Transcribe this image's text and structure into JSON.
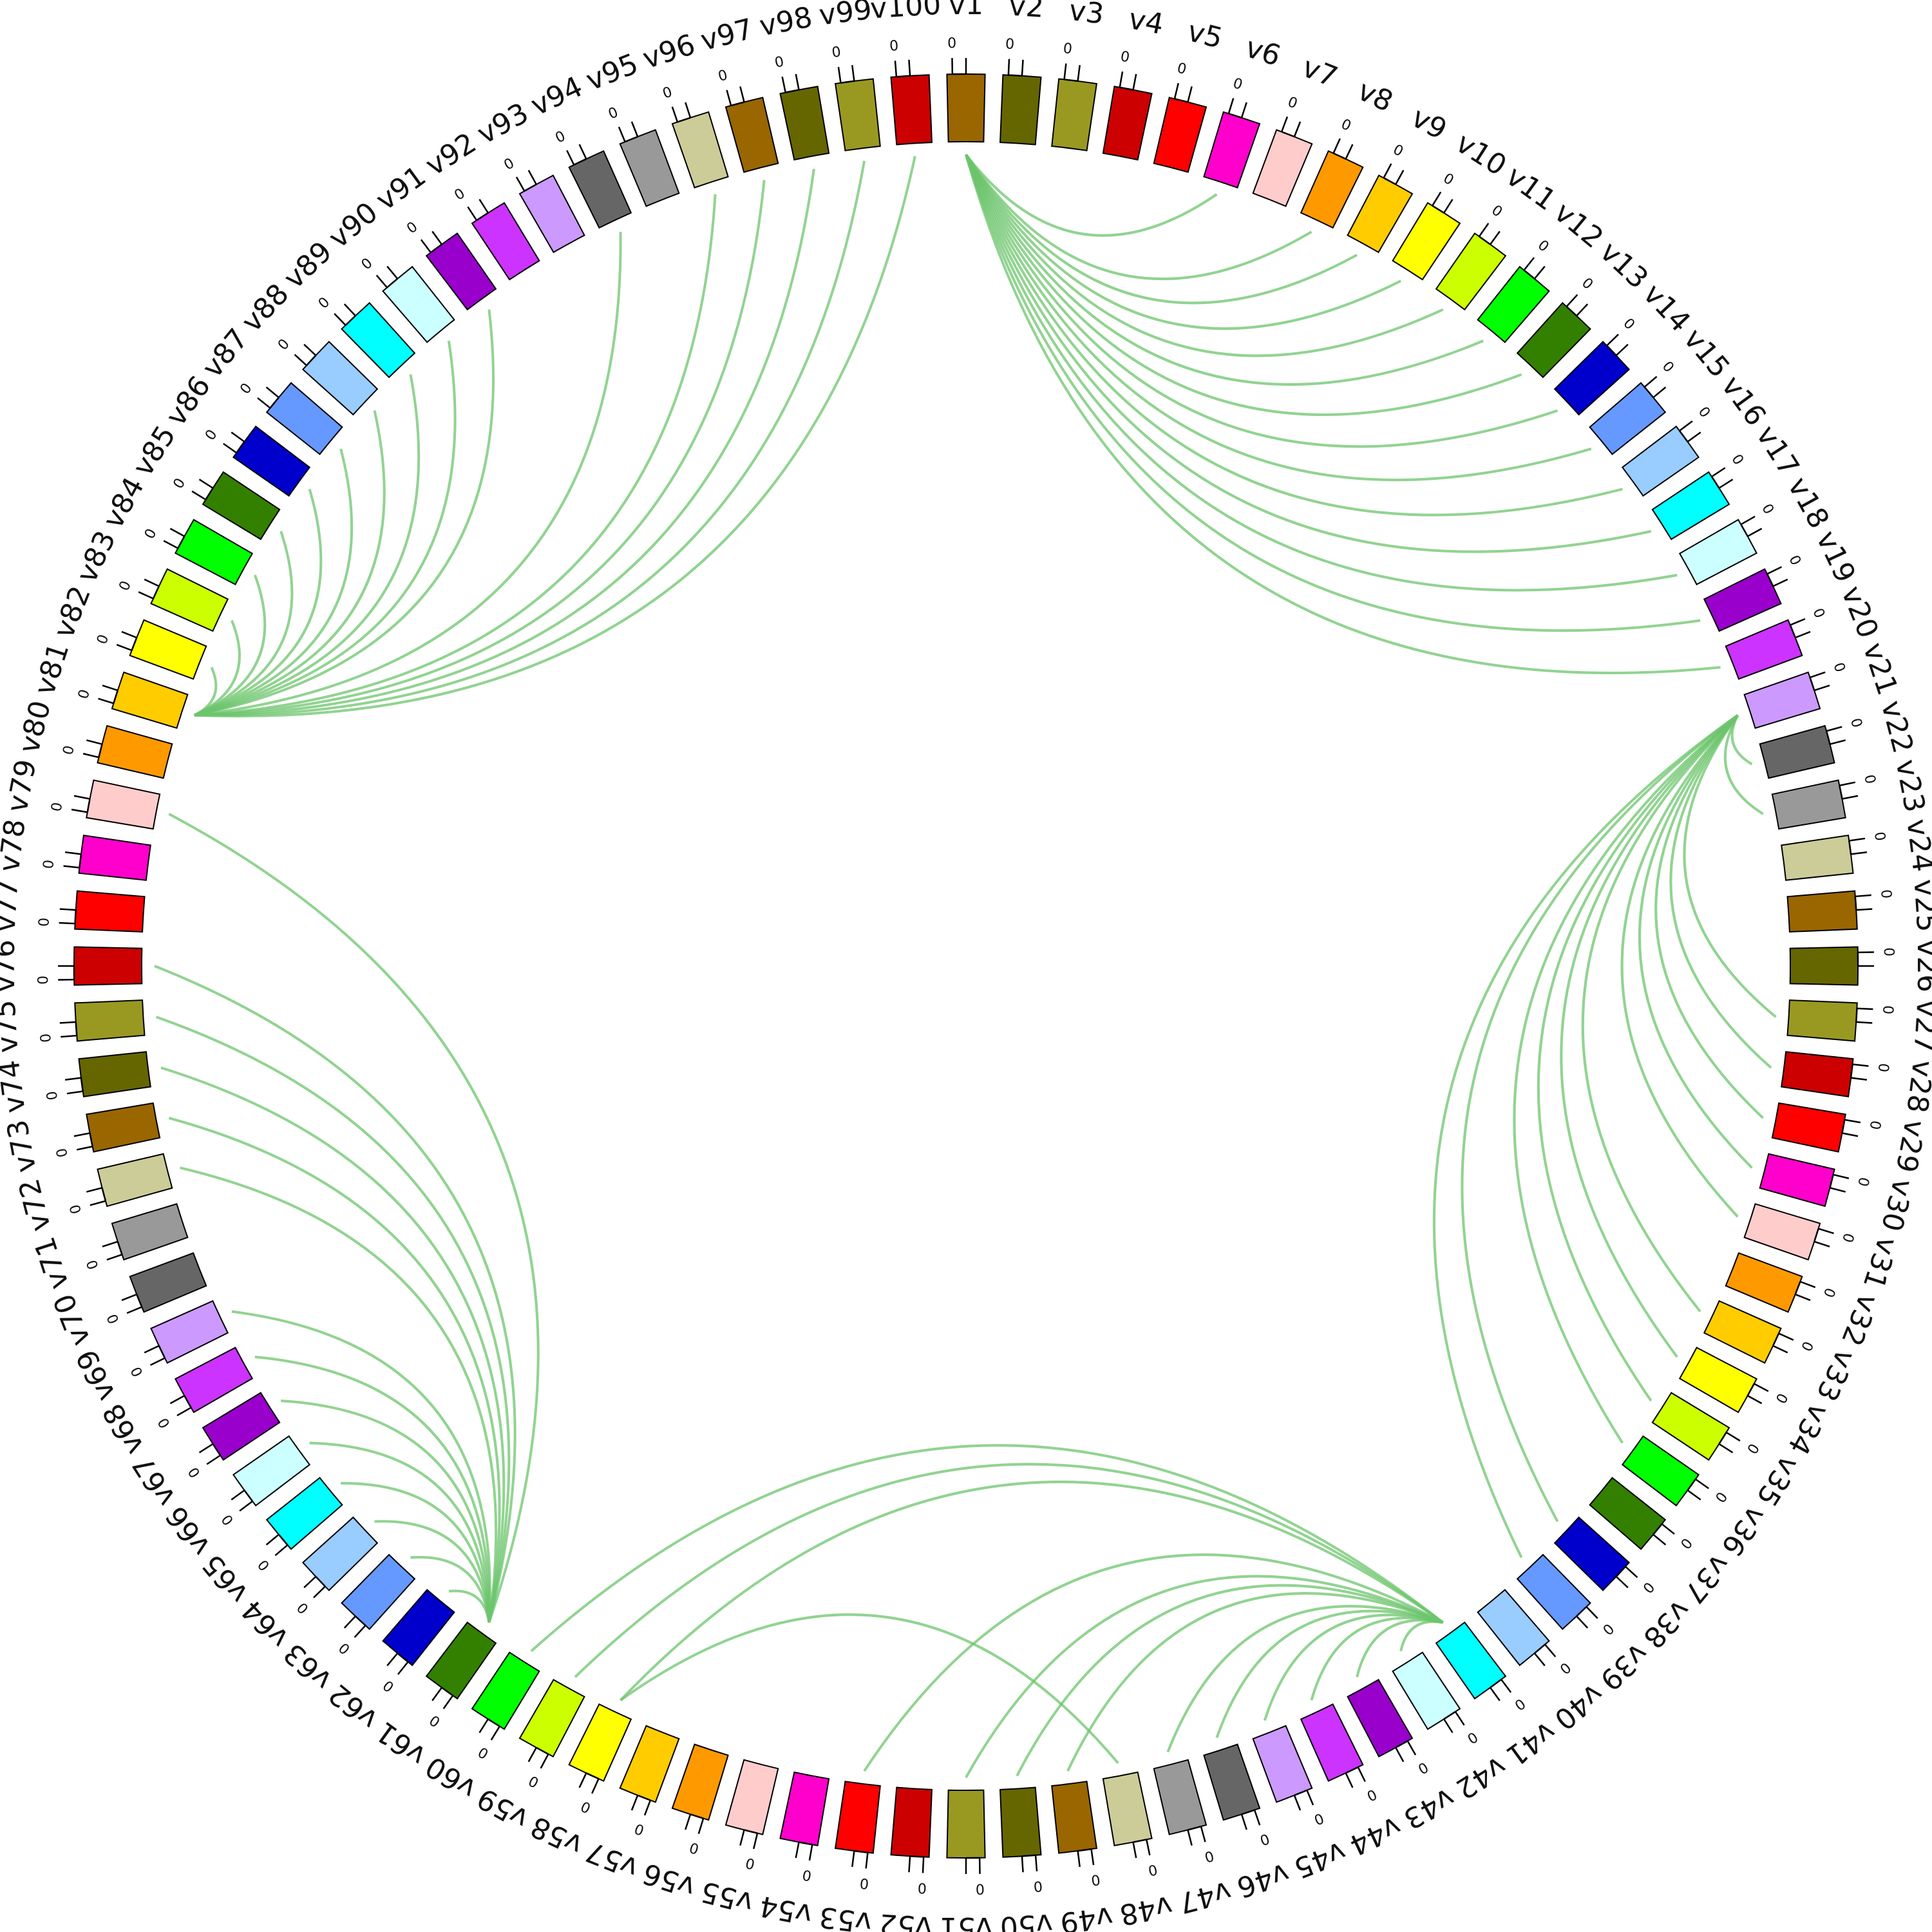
{
  "chart_data": {
    "type": "chord",
    "sectors": [
      "v1",
      "v2",
      "v3",
      "v4",
      "v5",
      "v6",
      "v7",
      "v8",
      "v9",
      "v10",
      "v11",
      "v12",
      "v13",
      "v14",
      "v15",
      "v16",
      "v17",
      "v18",
      "v19",
      "v20",
      "v21",
      "v22",
      "v23",
      "v24",
      "v25",
      "v26",
      "v27",
      "v28",
      "v29",
      "v30",
      "v31",
      "v32",
      "v33",
      "v34",
      "v35",
      "v36",
      "v37",
      "v38",
      "v39",
      "v40",
      "v41",
      "v42",
      "v43",
      "v44",
      "v45",
      "v46",
      "v47",
      "v48",
      "v49",
      "v50",
      "v51",
      "v52",
      "v53",
      "v54",
      "v55",
      "v56",
      "v57",
      "v58",
      "v59",
      "v60",
      "v61",
      "v62",
      "v63",
      "v64",
      "v65",
      "v66",
      "v67",
      "v68",
      "v69",
      "v70",
      "v71",
      "v72",
      "v73",
      "v74",
      "v75",
      "v76",
      "v77",
      "v78",
      "v79",
      "v80",
      "v81",
      "v82",
      "v83",
      "v84",
      "v85",
      "v86",
      "v87",
      "v88",
      "v89",
      "v90",
      "v91",
      "v92",
      "v93",
      "v94",
      "v95",
      "v96",
      "v97",
      "v98",
      "v99",
      "v100"
    ],
    "sector_colors": [
      "#996600",
      "#666600",
      "#999922",
      "#CC0000",
      "#FF0000",
      "#FF00CC",
      "#FFCCCC",
      "#FF9900",
      "#FFCC00",
      "#FFFF00",
      "#CCFF00",
      "#00FF00",
      "#338000",
      "#0000CC",
      "#6699FF",
      "#99CCFF",
      "#00FFFF",
      "#CCFFFF",
      "#9900CC",
      "#CC33FF",
      "#CC99FF",
      "#666666",
      "#999999",
      "#CCCC99",
      "#996600",
      "#666600",
      "#999922",
      "#CC0000",
      "#FF0000",
      "#FF00CC",
      "#FFCCCC",
      "#FF9900",
      "#FFCC00",
      "#FFFF00",
      "#CCFF00",
      "#00FF00",
      "#338000",
      "#0000CC",
      "#6699FF",
      "#99CCFF",
      "#00FFFF",
      "#CCFFFF",
      "#9900CC",
      "#CC33FF",
      "#CC99FF",
      "#666666",
      "#999999",
      "#CCCC99",
      "#996600",
      "#666600",
      "#999922",
      "#CC0000",
      "#FF0000",
      "#FF00CC",
      "#FFCCCC",
      "#FF9900",
      "#FFCC00",
      "#FFFF00",
      "#CCFF00",
      "#00FF00",
      "#338000",
      "#0000CC",
      "#6699FF",
      "#99CCFF",
      "#00FFFF",
      "#CCFFFF",
      "#9900CC",
      "#CC33FF",
      "#CC99FF",
      "#666666",
      "#999999",
      "#CCCC99",
      "#996600",
      "#666600",
      "#999922",
      "#CC0000",
      "#FF0000",
      "#FF00CC",
      "#FFCCCC",
      "#FF9900",
      "#FFCC00",
      "#FFFF00",
      "#CCFF00",
      "#00FF00",
      "#338000",
      "#0000CC",
      "#6699FF",
      "#99CCFF",
      "#00FFFF",
      "#CCFFFF",
      "#9900CC",
      "#CC33FF",
      "#CC99FF",
      "#666666",
      "#999999",
      "#CCCC99",
      "#996600",
      "#666600",
      "#999922",
      "#CC0000"
    ],
    "tick_label": "0",
    "link_color": "#6CC46C",
    "links": [
      {
        "from": "v1",
        "to": "v6"
      },
      {
        "from": "v1",
        "to": "v8"
      },
      {
        "from": "v1",
        "to": "v9"
      },
      {
        "from": "v1",
        "to": "v10"
      },
      {
        "from": "v1",
        "to": "v11"
      },
      {
        "from": "v1",
        "to": "v12"
      },
      {
        "from": "v1",
        "to": "v13"
      },
      {
        "from": "v1",
        "to": "v14"
      },
      {
        "from": "v1",
        "to": "v15"
      },
      {
        "from": "v1",
        "to": "v16"
      },
      {
        "from": "v1",
        "to": "v17"
      },
      {
        "from": "v1",
        "to": "v18"
      },
      {
        "from": "v1",
        "to": "v19"
      },
      {
        "from": "v1",
        "to": "v20"
      },
      {
        "from": "v21",
        "to": "v22"
      },
      {
        "from": "v21",
        "to": "v23"
      },
      {
        "from": "v21",
        "to": "v27"
      },
      {
        "from": "v21",
        "to": "v28"
      },
      {
        "from": "v21",
        "to": "v29"
      },
      {
        "from": "v21",
        "to": "v30"
      },
      {
        "from": "v21",
        "to": "v31"
      },
      {
        "from": "v21",
        "to": "v33"
      },
      {
        "from": "v21",
        "to": "v34"
      },
      {
        "from": "v21",
        "to": "v35"
      },
      {
        "from": "v21",
        "to": "v36"
      },
      {
        "from": "v21",
        "to": "v38"
      },
      {
        "from": "v21",
        "to": "v39"
      },
      {
        "from": "v41",
        "to": "v42"
      },
      {
        "from": "v41",
        "to": "v43"
      },
      {
        "from": "v41",
        "to": "v44"
      },
      {
        "from": "v41",
        "to": "v45"
      },
      {
        "from": "v41",
        "to": "v46"
      },
      {
        "from": "v41",
        "to": "v47"
      },
      {
        "from": "v41",
        "to": "v49"
      },
      {
        "from": "v41",
        "to": "v50"
      },
      {
        "from": "v41",
        "to": "v51"
      },
      {
        "from": "v41",
        "to": "v53"
      },
      {
        "from": "v41",
        "to": "v58"
      },
      {
        "from": "v41",
        "to": "v59"
      },
      {
        "from": "v41",
        "to": "v60"
      },
      {
        "from": "v48",
        "to": "v58"
      },
      {
        "from": "v61",
        "to": "v62"
      },
      {
        "from": "v61",
        "to": "v63"
      },
      {
        "from": "v61",
        "to": "v64"
      },
      {
        "from": "v61",
        "to": "v65"
      },
      {
        "from": "v61",
        "to": "v66"
      },
      {
        "from": "v61",
        "to": "v67"
      },
      {
        "from": "v61",
        "to": "v68"
      },
      {
        "from": "v61",
        "to": "v69"
      },
      {
        "from": "v61",
        "to": "v72"
      },
      {
        "from": "v61",
        "to": "v73"
      },
      {
        "from": "v61",
        "to": "v74"
      },
      {
        "from": "v61",
        "to": "v75"
      },
      {
        "from": "v61",
        "to": "v76"
      },
      {
        "from": "v61",
        "to": "v79"
      },
      {
        "from": "v81",
        "to": "v82"
      },
      {
        "from": "v81",
        "to": "v83"
      },
      {
        "from": "v81",
        "to": "v84"
      },
      {
        "from": "v81",
        "to": "v85"
      },
      {
        "from": "v81",
        "to": "v86"
      },
      {
        "from": "v81",
        "to": "v87"
      },
      {
        "from": "v81",
        "to": "v88"
      },
      {
        "from": "v81",
        "to": "v89"
      },
      {
        "from": "v81",
        "to": "v90"
      },
      {
        "from": "v81",
        "to": "v91"
      },
      {
        "from": "v81",
        "to": "v94"
      },
      {
        "from": "v81",
        "to": "v96"
      },
      {
        "from": "v81",
        "to": "v97"
      },
      {
        "from": "v81",
        "to": "v98"
      },
      {
        "from": "v81",
        "to": "v99"
      },
      {
        "from": "v81",
        "to": "v100"
      }
    ]
  }
}
